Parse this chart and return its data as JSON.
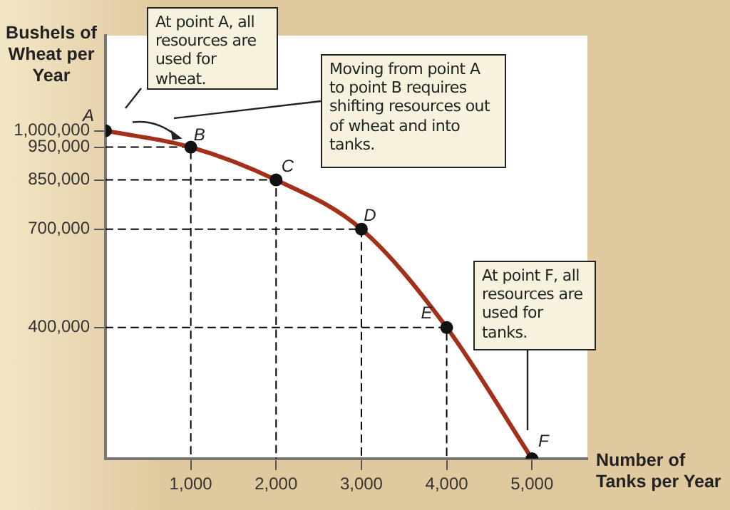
{
  "chart_data": {
    "type": "line",
    "xlabel": "Number of Tanks per Year",
    "ylabel": "Bushels of Wheat per Year",
    "xlim": [
      0,
      5650
    ],
    "ylim": [
      0,
      1290000
    ],
    "xticks": [
      {
        "value": 1000,
        "label": "1,000"
      },
      {
        "value": 2000,
        "label": "2,000"
      },
      {
        "value": 3000,
        "label": "3,000"
      },
      {
        "value": 4000,
        "label": "4,000"
      },
      {
        "value": 5000,
        "label": "5,000"
      }
    ],
    "yticks": [
      {
        "value": 400000,
        "label": "400,000"
      },
      {
        "value": 700000,
        "label": "700,000"
      },
      {
        "value": 850000,
        "label": "850,000"
      },
      {
        "value": 950000,
        "label": "950,000"
      },
      {
        "value": 1000000,
        "label": "1,000,000"
      }
    ],
    "series": [
      {
        "type": "line",
        "line_style": "dashed",
        "marker": "none",
        "color": "#000000",
        "x": [
          0,
          1000,
          1000
        ],
        "values": [
          950000,
          950000,
          0
        ]
      },
      {
        "type": "line",
        "line_style": "dashed",
        "marker": "none",
        "color": "#000000",
        "x": [
          0,
          2000,
          2000
        ],
        "values": [
          850000,
          850000,
          0
        ]
      },
      {
        "type": "line",
        "line_style": "dashed",
        "marker": "none",
        "color": "#000000",
        "x": [
          0,
          3000,
          3000
        ],
        "values": [
          700000,
          700000,
          0
        ]
      },
      {
        "type": "line",
        "line_style": "dashed",
        "marker": "none",
        "color": "#000000",
        "x": [
          0,
          4000,
          4000
        ],
        "values": [
          400000,
          400000,
          0
        ]
      },
      {
        "type": "line",
        "line_style": "solid",
        "marker": "none",
        "color": "#a3301a",
        "x": [
          0,
          1000,
          2000,
          3000,
          4000,
          5000
        ],
        "values": [
          1000000,
          950000,
          850000,
          700000,
          400000,
          0
        ]
      },
      {
        "type": "scatter",
        "marker": "circle",
        "color": "#111111",
        "x": [
          0,
          1000,
          2000,
          3000,
          4000,
          5000
        ],
        "values": [
          1000000,
          950000,
          850000,
          700000,
          400000,
          0
        ]
      }
    ],
    "annotations": [
      "At point A, all resources are used for wheat.",
      "Moving from point A to point B requires shifting resources out of wheat and into tanks.",
      "At point F, all resources are used for tanks.",
      {
        "text": "A",
        "x": 0,
        "y": 1000000
      },
      {
        "text": "B",
        "x": 1000,
        "y": 950000
      },
      {
        "text": "C",
        "x": 2000,
        "y": 850000
      },
      {
        "text": "D",
        "x": 3000,
        "y": 700000
      },
      {
        "text": "E",
        "x": 4000,
        "y": 400000
      },
      {
        "text": "F",
        "x": 5000,
        "y": 0
      }
    ],
    "legend": false,
    "grid": false
  }
}
